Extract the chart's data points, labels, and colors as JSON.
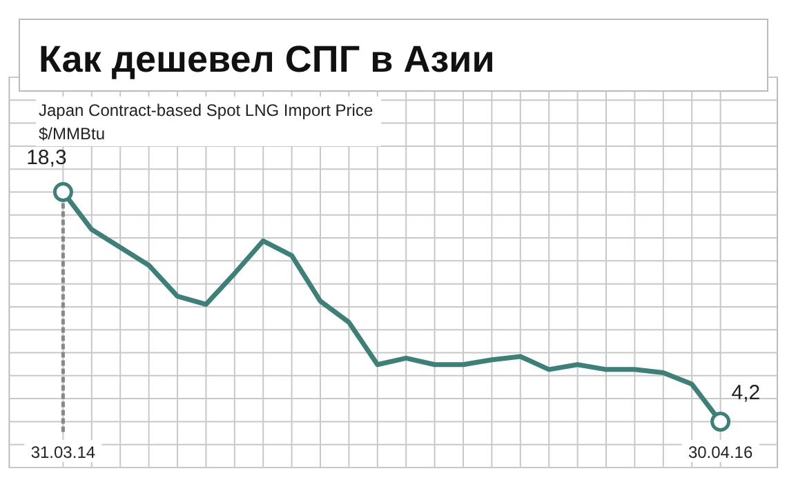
{
  "chart_data": {
    "type": "line",
    "title": "Как дешевел СПГ в Азии",
    "subtitle": "Japan Contract-based Spot LNG Import Price",
    "ylabel": "$/MMBtu",
    "categories": [
      "31.03.14",
      null,
      null,
      null,
      null,
      null,
      null,
      null,
      null,
      null,
      null,
      null,
      null,
      null,
      null,
      null,
      null,
      null,
      null,
      null,
      null,
      null,
      null,
      "30.04.16"
    ],
    "series": [
      {
        "color": "#3d8078",
        "values": [
          18.3,
          16.0,
          14.9,
          13.8,
          11.9,
          11.4,
          13.3,
          15.3,
          14.4,
          11.6,
          10.3,
          7.7,
          8.1,
          7.7,
          7.7,
          8.0,
          8.2,
          7.4,
          7.7,
          7.4,
          7.4,
          7.2,
          6.5,
          4.2
        ],
        "value_labels": [
          "18,3",
          null,
          null,
          null,
          null,
          null,
          null,
          null,
          null,
          null,
          null,
          null,
          null,
          null,
          null,
          null,
          null,
          null,
          null,
          null,
          null,
          null,
          null,
          "4,2"
        ]
      }
    ],
    "ylim": [
      1.38,
      25.35
    ],
    "yticks": [
      {
        "value": 1.38,
        "label": null
      },
      {
        "value": 2.79,
        "label": null
      },
      {
        "value": 4.2,
        "label": null
      },
      {
        "value": 5.61,
        "label": null
      },
      {
        "value": 7.02,
        "label": null
      },
      {
        "value": 8.43,
        "label": null
      },
      {
        "value": 9.84,
        "label": null
      },
      {
        "value": 11.25,
        "label": null
      },
      {
        "value": 12.66,
        "label": null
      },
      {
        "value": 14.07,
        "label": null
      },
      {
        "value": 15.48,
        "label": null
      },
      {
        "value": 16.89,
        "label": null
      },
      {
        "value": 18.3,
        "label": null
      },
      {
        "value": 19.71,
        "label": null
      },
      {
        "value": 21.12,
        "label": null
      },
      {
        "value": 22.53,
        "label": null
      },
      {
        "value": 23.94,
        "label": null
      },
      {
        "value": 25.35,
        "label": null
      }
    ],
    "grid": true,
    "tick_labels": "x",
    "ref_lines": [
      {
        "axis": "x",
        "value": "31.03.14",
        "label": null,
        "line_style": "dashed",
        "color": "#888888"
      }
    ]
  }
}
